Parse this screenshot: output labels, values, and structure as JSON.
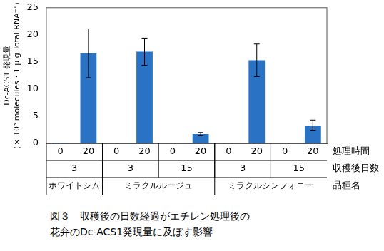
{
  "chart_data": {
    "type": "bar",
    "title": [
      "図３　収穫後の日数経過がエチレン処理後の",
      "花弁のDc-ACS1発現量に及ぼす影響"
    ],
    "y_label": [
      "Dc-ACS1 発現量",
      "（× 10³ molecules・1 μ g Total RNA⁻¹）"
    ],
    "row_labels": [
      "処理時間",
      "収穫後日数",
      "品種名"
    ],
    "categories": [
      "0",
      "20",
      "0",
      "20",
      "0",
      "20",
      "0",
      "20",
      "0",
      "20"
    ],
    "days": [
      "3",
      "3",
      "3",
      "3",
      "15",
      "15",
      "3",
      "3",
      "15",
      "15"
    ],
    "varieties": [
      "ホワイトシム",
      "ホワイトシム",
      "ミラクルルージュ",
      "ミラクルルージュ",
      "ミラクルルージュ",
      "ミラクルルージュ",
      "ミラクルシンフォニー",
      "ミラクルシンフォニー",
      "ミラクルシンフォニー",
      "ミラクルシンフォニー"
    ],
    "values": [
      0.1,
      16.6,
      0,
      16.9,
      0,
      1.7,
      0,
      15.3,
      0,
      3.3
    ],
    "errors": [
      0,
      4.5,
      0,
      2.5,
      0,
      0.3,
      0,
      3.0,
      0,
      1.0
    ],
    "color": "#2a72c4",
    "ylim": [
      0,
      25
    ],
    "yticks": [
      0,
      5,
      10,
      15,
      20,
      25
    ],
    "grid": false
  }
}
